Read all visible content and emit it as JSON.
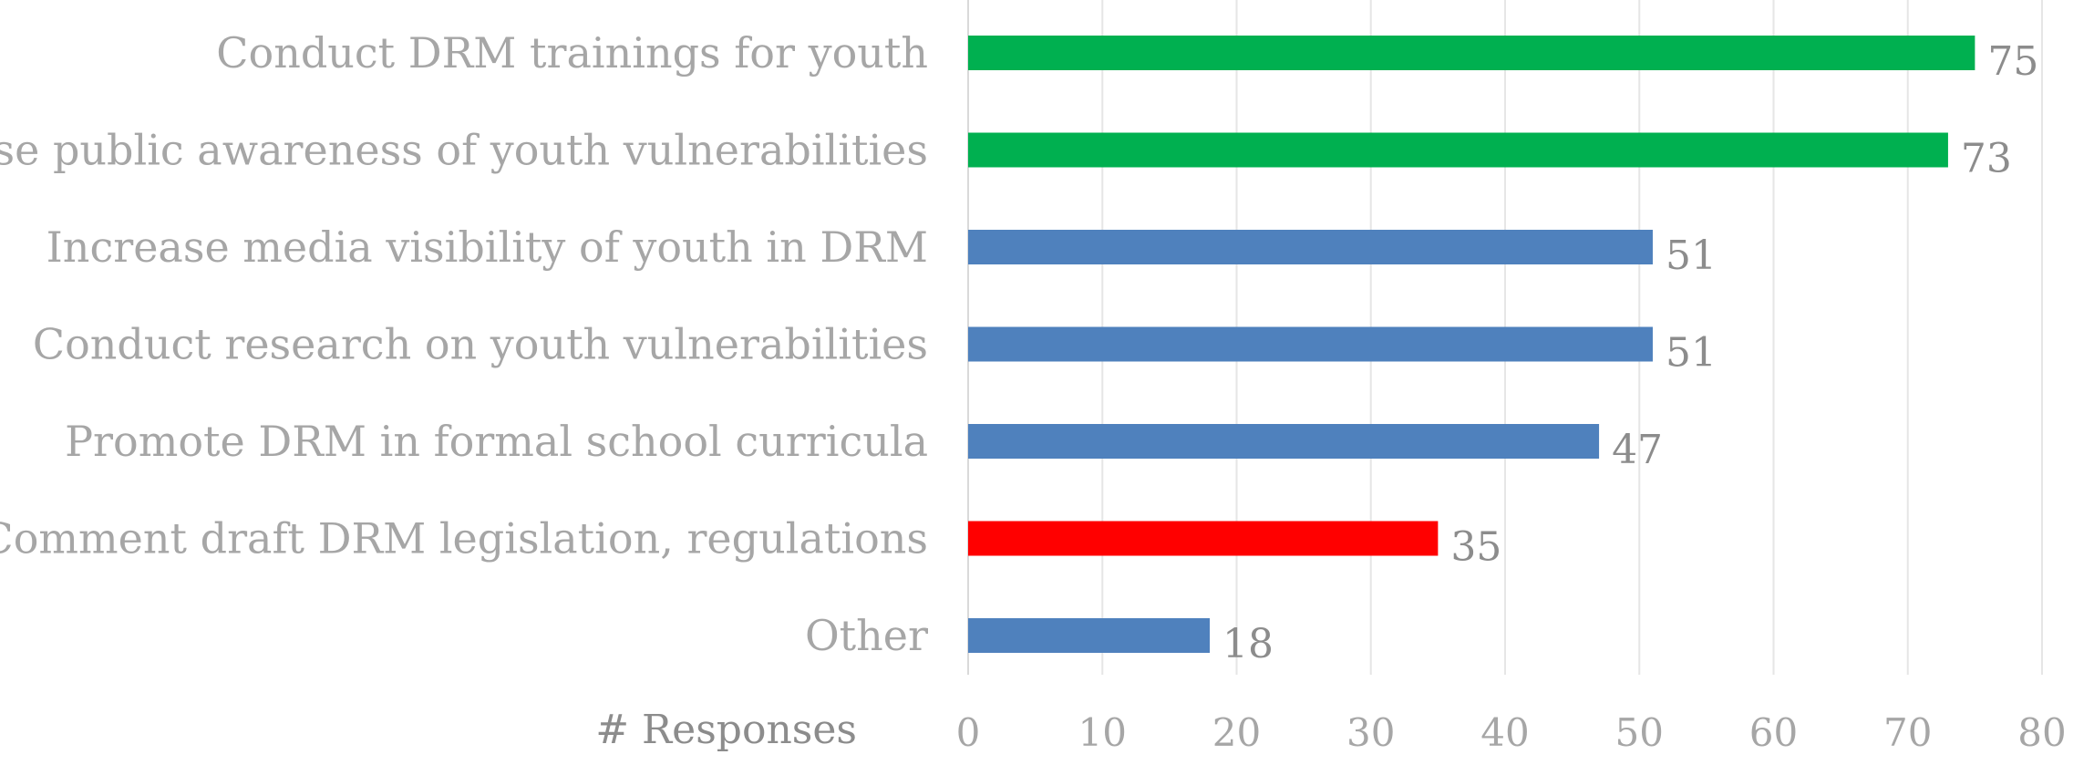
{
  "chart_data": {
    "type": "bar",
    "orientation": "horizontal",
    "categories": [
      "Conduct DRM trainings for youth",
      "Raise public awareness of youth vulnerabilities",
      "Increase media visibility of youth in DRM",
      "Conduct research on youth vulnerabilities",
      "Promote DRM in formal school curricula",
      "Comment draft DRM legislation, regulations",
      "Other"
    ],
    "values": [
      75,
      73,
      51,
      51,
      47,
      35,
      18
    ],
    "bar_colors": [
      "#00b050",
      "#00b050",
      "#4f81bd",
      "#4f81bd",
      "#4f81bd",
      "#ff0000",
      "#4f81bd"
    ],
    "xlabel": "# Responses",
    "xlim": [
      0,
      80
    ],
    "xticks": [
      "0",
      "10",
      "20",
      "30",
      "40",
      "50",
      "60",
      "70",
      "80"
    ],
    "grid": "vertical",
    "data_labels": true,
    "legend": "none"
  }
}
